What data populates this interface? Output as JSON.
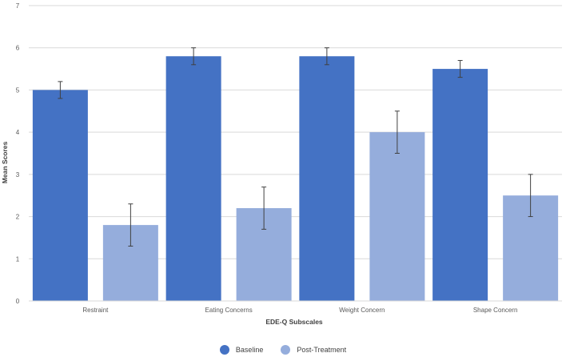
{
  "chart_data": {
    "type": "bar",
    "title": "",
    "xlabel": "EDE-Q Subscales",
    "ylabel": "Mean Scores",
    "ylim": [
      0,
      7
    ],
    "yticks": [
      0,
      1,
      2,
      3,
      4,
      5,
      6,
      7
    ],
    "grid": true,
    "legend_position": "bottom",
    "categories": [
      "Restraint",
      "Eating Concerns",
      "Weight Concern",
      "Shape Concern"
    ],
    "series": [
      {
        "name": "Baseline",
        "color": "#4472C4",
        "values": [
          5.0,
          5.8,
          5.8,
          5.5
        ],
        "error": [
          0.2,
          0.2,
          0.2,
          0.2
        ]
      },
      {
        "name": "Post-Treatment",
        "color": "#95ADDC",
        "values": [
          1.8,
          2.2,
          4.0,
          2.5
        ],
        "error": [
          0.5,
          0.5,
          0.5,
          0.5
        ]
      }
    ]
  }
}
